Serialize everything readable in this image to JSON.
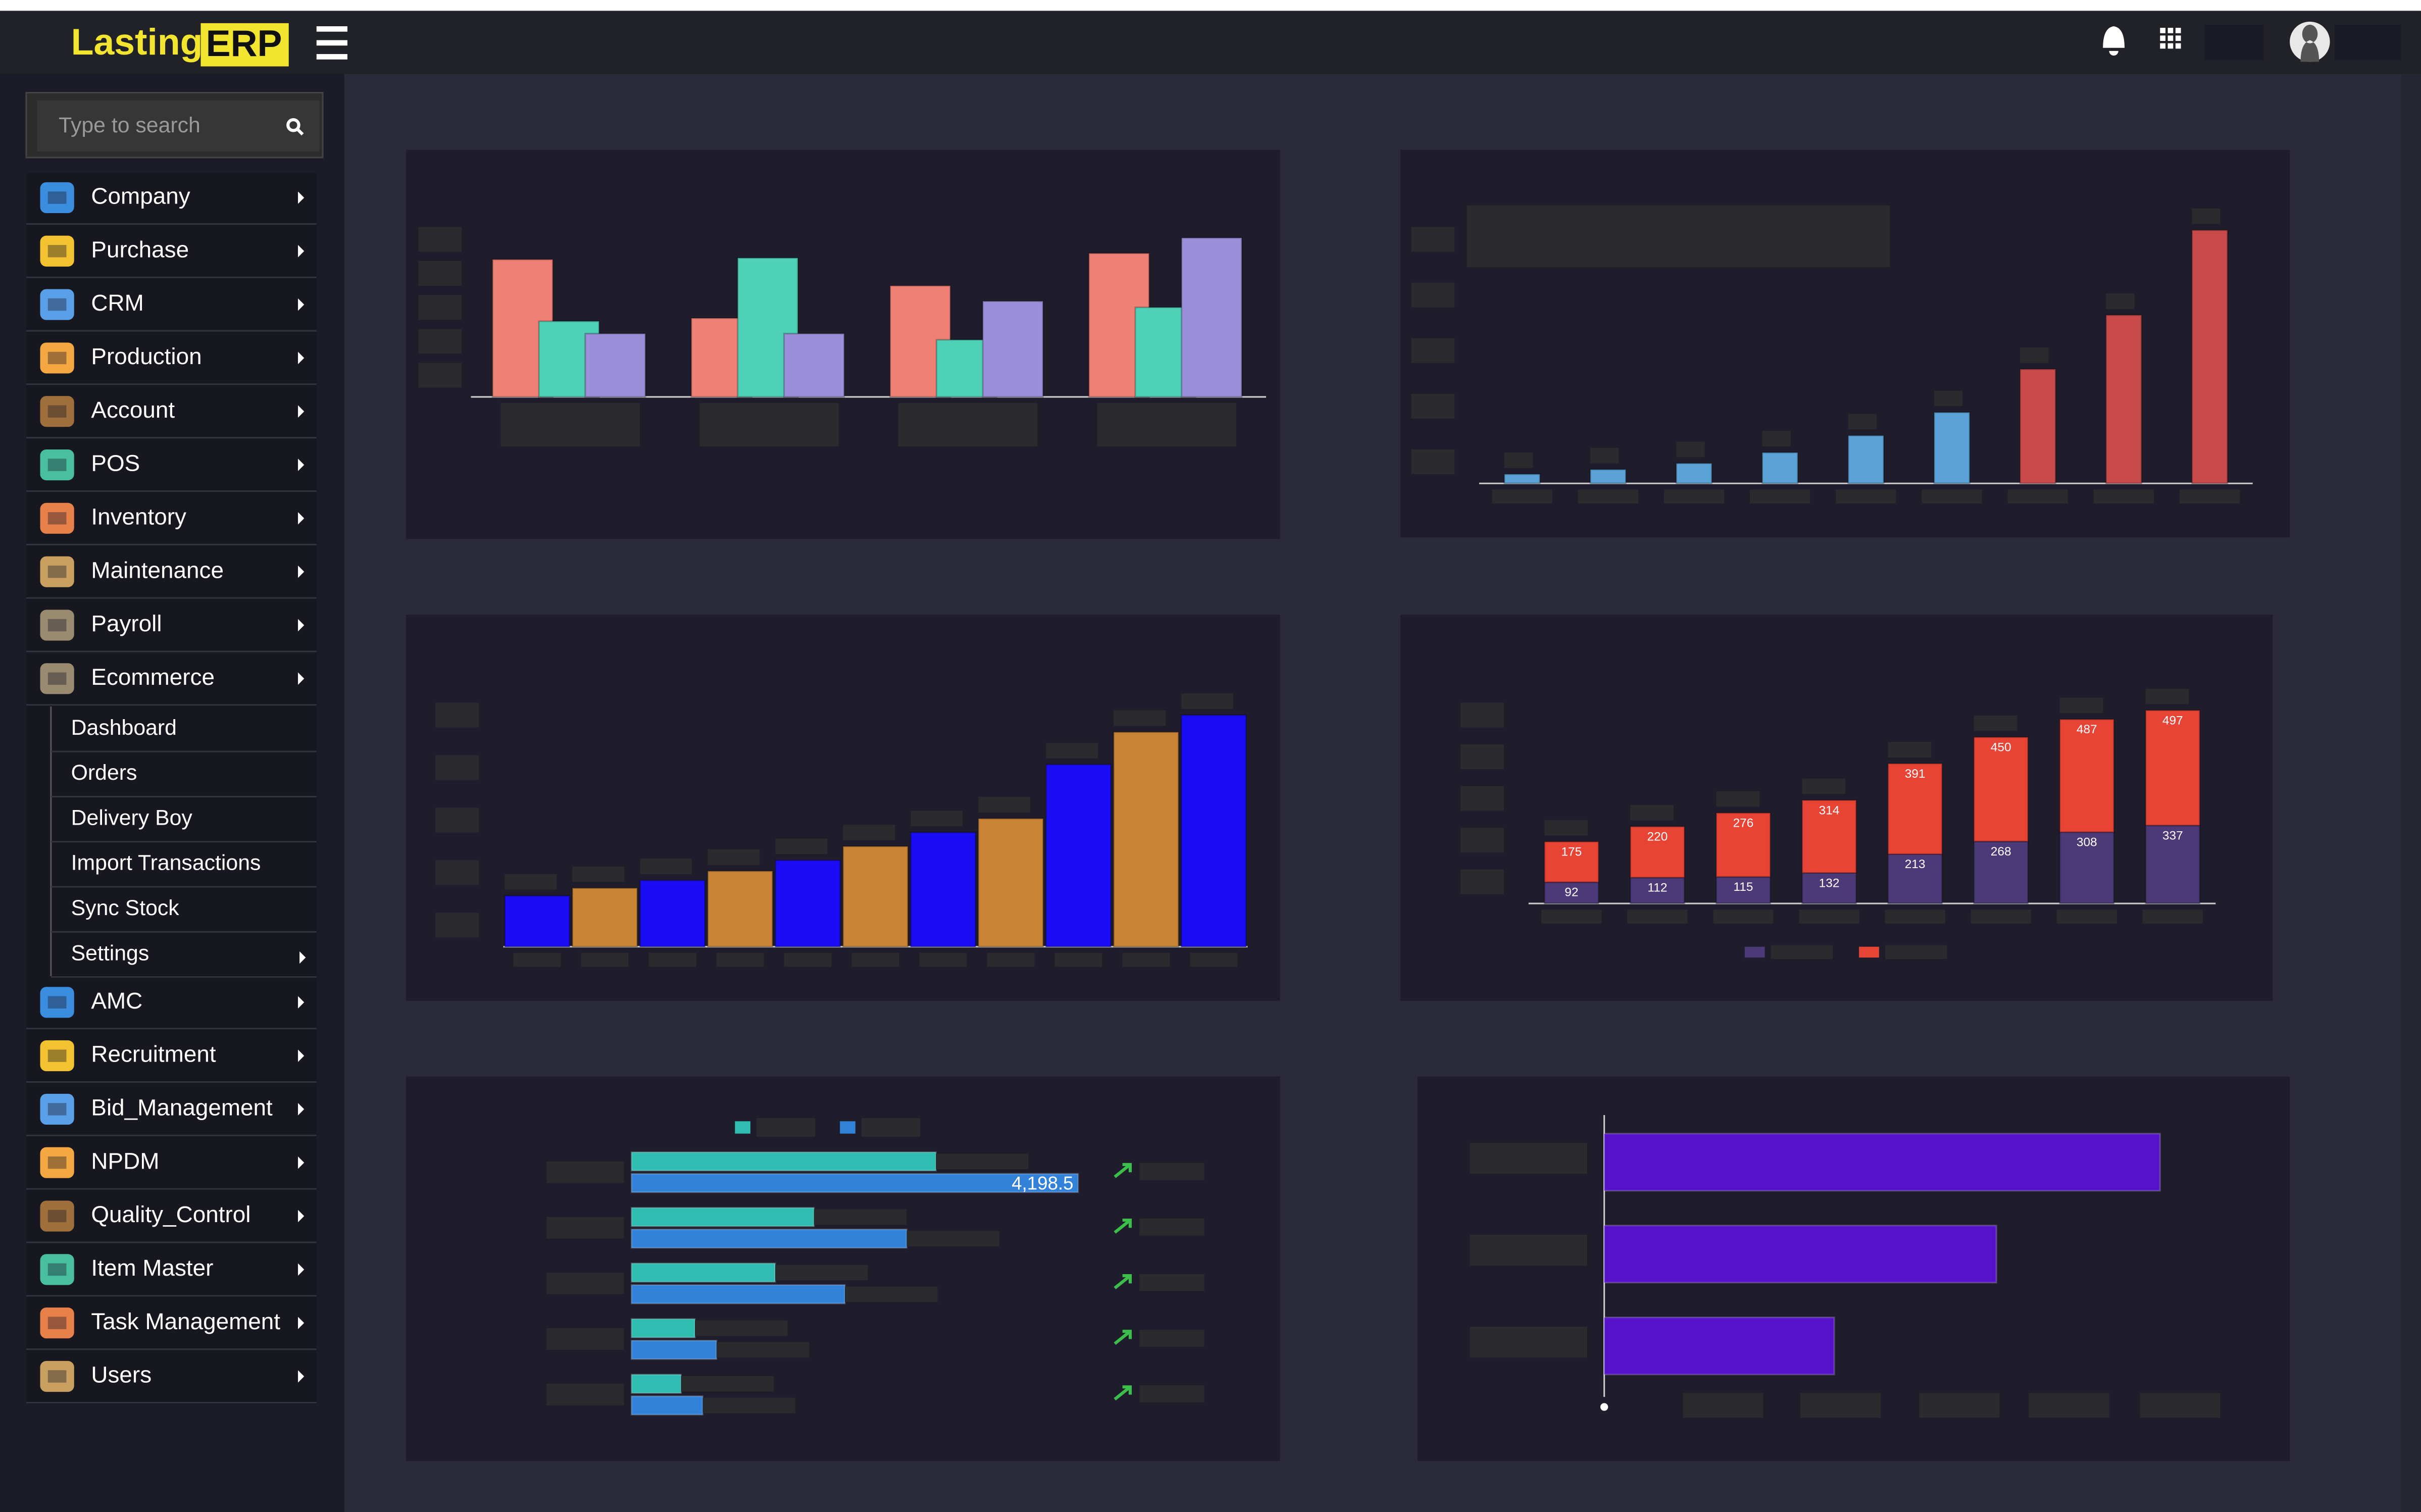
{
  "header": {
    "logo_text": "Lasting",
    "logo_badge": "ERP"
  },
  "search": {
    "placeholder": "Type to search"
  },
  "menu": [
    {
      "label": "Company"
    },
    {
      "label": "Purchase"
    },
    {
      "label": "CRM"
    },
    {
      "label": "Production"
    },
    {
      "label": "Account"
    },
    {
      "label": "POS"
    },
    {
      "label": "Inventory"
    },
    {
      "label": "Maintenance"
    },
    {
      "label": "Payroll"
    },
    {
      "label": "Ecommerce",
      "children": [
        {
          "label": "Dashboard"
        },
        {
          "label": "Orders"
        },
        {
          "label": "Delivery Boy"
        },
        {
          "label": "Import Transactions"
        },
        {
          "label": "Sync Stock"
        },
        {
          "label": "Settings",
          "submenu": true
        }
      ]
    },
    {
      "label": "AMC"
    },
    {
      "label": "Recruitment"
    },
    {
      "label": "Bid_Management"
    },
    {
      "label": "NPDM"
    },
    {
      "label": "Quality_Control"
    },
    {
      "label": "Item Master"
    },
    {
      "label": "Task Management"
    },
    {
      "label": "Users"
    }
  ],
  "charts": [
    {
      "type": "bar",
      "ylim": [
        0,
        110
      ],
      "series": [
        {
          "color": "#ee8075",
          "values": [
            89,
            51,
            72,
            93
          ]
        },
        {
          "color": "#4fd1b8",
          "values": [
            49,
            90,
            37,
            58
          ]
        },
        {
          "color": "#9a8fd8",
          "values": [
            41,
            41,
            62,
            103
          ]
        }
      ]
    },
    {
      "type": "bar",
      "ylim": [
        0,
        180
      ],
      "series": [
        {
          "colors": [
            "#5ba3d6",
            "#5ba3d6",
            "#5ba3d6",
            "#5ba3d6",
            "#5ba3d6",
            "#5ba3d6",
            "#c94a4a",
            "#c94a4a",
            "#c94a4a"
          ],
          "values": [
            6,
            9,
            13,
            20,
            31,
            46,
            74,
            109,
            164
          ]
        }
      ]
    },
    {
      "type": "bar",
      "ylim": [
        0,
        170
      ],
      "series": [
        {
          "colors": [
            "#1a0cf5",
            "#c98535",
            "#1a0cf5",
            "#c98535",
            "#1a0cf5",
            "#c98535",
            "#1a0cf5",
            "#c98535",
            "#1a0cf5",
            "#c98535",
            "#1a0cf5"
          ],
          "values": [
            33,
            38,
            43,
            49,
            56,
            65,
            74,
            83,
            118,
            139,
            150
          ]
        }
      ]
    },
    {
      "type": "bar",
      "stacked": true,
      "data_labels": true,
      "ylim": [
        0,
        900
      ],
      "series": [
        {
          "color": "#4c3a78",
          "values": [
            92,
            112,
            115,
            132,
            213,
            268,
            308,
            337
          ]
        },
        {
          "color": "#e84436",
          "values": [
            175,
            220,
            276,
            314,
            391,
            450,
            487,
            497
          ]
        }
      ]
    },
    {
      "type": "hbar",
      "xlim": [
        0,
        4500
      ],
      "series": [
        {
          "color": "#2ebdb0",
          "values": [
            2862,
            1715,
            1351,
            596,
            465
          ]
        },
        {
          "color": "#3182d8",
          "values": [
            4198.5,
            2587,
            2006,
            799,
            669
          ],
          "value_labels": [
            "4,198.5",
            null,
            null,
            null,
            null
          ]
        }
      ]
    },
    {
      "type": "hbar",
      "xlim": [
        0,
        400
      ],
      "series": [
        {
          "color": "#5512c9",
          "values": [
            360,
            254,
            149
          ]
        }
      ]
    }
  ]
}
